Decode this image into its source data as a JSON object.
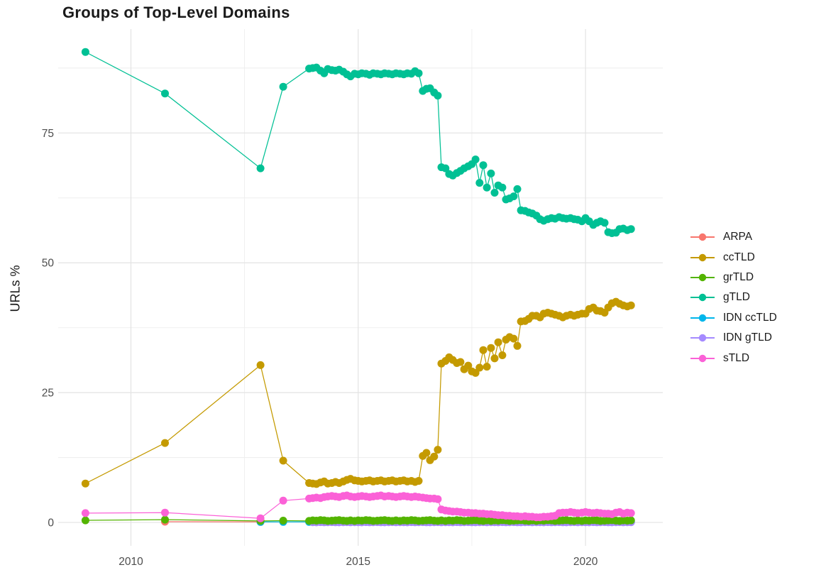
{
  "title": "Groups of Top-Level Domains",
  "legend": {
    "position": "right"
  },
  "chart_data": {
    "type": "line",
    "title": "Groups of Top-Level Domains",
    "xlabel": "",
    "ylabel": "URLs %",
    "xlim": [
      2008.4,
      2021.7
    ],
    "ylim": [
      -4.5,
      95
    ],
    "grid": true,
    "legend_position": "right",
    "x_major": [
      2010,
      2015,
      2020
    ],
    "x_major_labels": [
      "2010",
      "2015",
      "2020"
    ],
    "x_minor": [
      2012.5,
      2017.5
    ],
    "y_major": [
      0,
      25,
      50,
      75
    ],
    "y_major_labels": [
      "0",
      "25",
      "50",
      "75"
    ],
    "y_minor": [
      12.5,
      37.5,
      62.5,
      87.5
    ],
    "x": [
      2009.0,
      2010.75,
      2012.85,
      2013.35,
      2013.92,
      2014.0,
      2014.08,
      2014.17,
      2014.25,
      2014.33,
      2014.42,
      2014.5,
      2014.58,
      2014.67,
      2014.75,
      2014.83,
      2014.92,
      2015.0,
      2015.08,
      2015.17,
      2015.25,
      2015.33,
      2015.42,
      2015.5,
      2015.58,
      2015.67,
      2015.75,
      2015.83,
      2015.92,
      2016.0,
      2016.08,
      2016.17,
      2016.25,
      2016.33,
      2016.42,
      2016.5,
      2016.58,
      2016.67,
      2016.75,
      2016.83,
      2016.92,
      2017.0,
      2017.08,
      2017.17,
      2017.25,
      2017.33,
      2017.42,
      2017.5,
      2017.58,
      2017.67,
      2017.75,
      2017.83,
      2017.92,
      2018.0,
      2018.08,
      2018.17,
      2018.25,
      2018.33,
      2018.42,
      2018.5,
      2018.58,
      2018.67,
      2018.75,
      2018.83,
      2018.92,
      2019.0,
      2019.08,
      2019.17,
      2019.25,
      2019.33,
      2019.42,
      2019.5,
      2019.58,
      2019.67,
      2019.75,
      2019.83,
      2019.92,
      2020.0,
      2020.08,
      2020.17,
      2020.25,
      2020.33,
      2020.42,
      2020.5,
      2020.58,
      2020.67,
      2020.75,
      2020.83,
      2020.92,
      2021.0
    ],
    "z_order": [
      0,
      4,
      5,
      2,
      1,
      3,
      6
    ],
    "series": [
      {
        "name": "ARPA",
        "color": "#F8766D",
        "x": [
          2010.75,
          2012.85
        ],
        "y": [
          0.15,
          0.1
        ]
      },
      {
        "name": "ccTLD",
        "color": "#C49A00",
        "start_index": 0,
        "y": [
          7.5,
          15.3,
          30.3,
          11.9,
          7.6,
          7.5,
          7.4,
          7.7,
          7.9,
          7.5,
          7.6,
          7.8,
          7.6,
          7.9,
          8.2,
          8.4,
          8.1,
          8.0,
          7.9,
          8.0,
          8.1,
          7.9,
          8.0,
          8.1,
          7.9,
          8.0,
          8.1,
          7.9,
          8.0,
          8.1,
          7.9,
          8.0,
          7.8,
          8.0,
          12.8,
          13.4,
          12.0,
          12.7,
          14.0,
          30.6,
          31.1,
          31.8,
          31.3,
          30.7,
          30.9,
          29.5,
          30.2,
          29.1,
          28.8,
          29.8,
          33.2,
          30.0,
          33.6,
          31.6,
          34.7,
          32.2,
          35.2,
          35.7,
          35.4,
          34.0,
          38.7,
          38.8,
          39.2,
          39.8,
          39.8,
          39.5,
          40.2,
          40.4,
          40.2,
          40.0,
          39.8,
          39.5,
          39.8,
          40.0,
          39.8,
          40.0,
          40.2,
          40.2,
          41.1,
          41.4,
          40.8,
          40.7,
          40.4,
          41.4,
          42.2,
          42.5,
          42.1,
          41.8,
          41.6,
          41.8
        ]
      },
      {
        "name": "grTLD",
        "color": "#53B400",
        "start_index": 0,
        "y": [
          0.4,
          0.55,
          0.3,
          0.35,
          0.3,
          0.4,
          0.35,
          0.45,
          0.4,
          0.3,
          0.35,
          0.4,
          0.45,
          0.35,
          0.3,
          0.4,
          0.3,
          0.4,
          0.35,
          0.45,
          0.4,
          0.3,
          0.35,
          0.4,
          0.45,
          0.35,
          0.3,
          0.4,
          0.3,
          0.4,
          0.35,
          0.45,
          0.4,
          0.3,
          0.35,
          0.4,
          0.45,
          0.35,
          0.3,
          0.4,
          0.3,
          0.4,
          0.35,
          0.45,
          0.4,
          0.3,
          0.35,
          0.4,
          0.45,
          0.35,
          0.3,
          0.4,
          0.3,
          0.4,
          0.35,
          0.45,
          0.4,
          0.3,
          0.35,
          0.4,
          0.45,
          0.35,
          0.3,
          0.4,
          0.3,
          0.4,
          0.35,
          0.45,
          0.4,
          0.3,
          0.35,
          0.4,
          0.45,
          0.35,
          0.3,
          0.4,
          0.3,
          0.4,
          0.35,
          0.45,
          0.4,
          0.3,
          0.35,
          0.4,
          0.45,
          0.35,
          0.3,
          0.4,
          0.35,
          0.4
        ]
      },
      {
        "name": "gTLD",
        "color": "#00C094",
        "start_index": 0,
        "y": [
          90.6,
          82.6,
          68.2,
          83.9,
          87.4,
          87.5,
          87.6,
          87.0,
          86.5,
          87.3,
          87.1,
          87.0,
          87.2,
          86.8,
          86.3,
          85.9,
          86.4,
          86.3,
          86.5,
          86.4,
          86.2,
          86.5,
          86.4,
          86.3,
          86.5,
          86.4,
          86.3,
          86.5,
          86.4,
          86.3,
          86.5,
          86.4,
          86.9,
          86.5,
          83.1,
          83.5,
          83.6,
          82.8,
          82.2,
          68.4,
          68.2,
          67.1,
          66.8,
          67.3,
          67.7,
          68.2,
          68.6,
          69.0,
          69.9,
          65.4,
          68.8,
          64.5,
          67.2,
          63.5,
          64.9,
          64.5,
          62.2,
          62.4,
          62.8,
          64.2,
          60.1,
          60.0,
          59.7,
          59.5,
          59.1,
          58.4,
          58.1,
          58.4,
          58.6,
          58.5,
          58.8,
          58.6,
          58.5,
          58.6,
          58.4,
          58.3,
          58.0,
          58.6,
          58.0,
          57.3,
          57.7,
          58.0,
          57.7,
          55.9,
          55.7,
          55.8,
          56.5,
          56.6,
          56.3,
          56.5
        ]
      },
      {
        "name": "IDN ccTLD",
        "color": "#00B6EB",
        "start_index": 2,
        "y": [
          0.1,
          0.1,
          0.1,
          0.12,
          0.08,
          0.1,
          0.14,
          0.1,
          0.08,
          0.12,
          0.1,
          0.09,
          0.11,
          0.1,
          0.1,
          0.12,
          0.08,
          0.1,
          0.14,
          0.1,
          0.08,
          0.12,
          0.1,
          0.09,
          0.11,
          0.1,
          0.1,
          0.12,
          0.08,
          0.1,
          0.14,
          0.1,
          0.08,
          0.12,
          0.1,
          0.09,
          0.11,
          0.1,
          0.1,
          0.12,
          0.08,
          0.1,
          0.14,
          0.1,
          0.08,
          0.12,
          0.1,
          0.09,
          0.11,
          0.1,
          0.1,
          0.12,
          0.08,
          0.1,
          0.14,
          0.1,
          0.08,
          0.12,
          0.1,
          0.09,
          0.11,
          0.1,
          0.1,
          0.12,
          0.08,
          0.1,
          0.14,
          0.1,
          0.08,
          0.12,
          0.1,
          0.09,
          0.11,
          0.1,
          0.1,
          0.12,
          0.08,
          0.1,
          0.14,
          0.1,
          0.08,
          0.12,
          0.1,
          0.09,
          0.11,
          0.1,
          0.1,
          0.12
        ]
      },
      {
        "name": "IDN gTLD",
        "color": "#A58AFF",
        "start_index": 5,
        "y": [
          0.05,
          0.03,
          0.06,
          0.04,
          0.05,
          0.07,
          0.04,
          0.03,
          0.05,
          0.06,
          0.04,
          0.05,
          0.05,
          0.03,
          0.06,
          0.04,
          0.05,
          0.07,
          0.04,
          0.03,
          0.05,
          0.06,
          0.04,
          0.05,
          0.05,
          0.03,
          0.06,
          0.04,
          0.05,
          0.07,
          0.04,
          0.03,
          0.05,
          0.06,
          0.04,
          0.05,
          0.05,
          0.03,
          0.06,
          0.04,
          0.05,
          0.07,
          0.04,
          0.03,
          0.05,
          0.06,
          0.04,
          0.05,
          0.05,
          0.03,
          0.06,
          0.04,
          0.05,
          0.07,
          0.04,
          0.03,
          0.05,
          0.06,
          0.04,
          0.05,
          0.05,
          0.03,
          0.06,
          0.04,
          0.05,
          0.07,
          0.04,
          0.03,
          0.05,
          0.06,
          0.04,
          0.05,
          0.05,
          0.03,
          0.06,
          0.04,
          0.05,
          0.07,
          0.04,
          0.03,
          0.05,
          0.06,
          0.04,
          0.05,
          0.05
        ]
      },
      {
        "name": "sTLD",
        "color": "#FB61D7",
        "start_index": 0,
        "y": [
          1.8,
          1.9,
          0.8,
          4.2,
          4.6,
          4.7,
          4.8,
          4.7,
          4.9,
          5.0,
          5.1,
          5.0,
          4.9,
          5.1,
          5.2,
          5.0,
          4.9,
          5.0,
          5.1,
          5.0,
          4.9,
          5.0,
          5.1,
          5.2,
          5.0,
          5.1,
          5.0,
          4.9,
          5.0,
          5.1,
          5.0,
          4.9,
          5.0,
          4.9,
          4.8,
          4.7,
          4.6,
          4.6,
          4.5,
          2.5,
          2.3,
          2.2,
          2.1,
          2.1,
          2.0,
          1.9,
          1.9,
          1.8,
          1.8,
          1.7,
          1.7,
          1.6,
          1.6,
          1.5,
          1.4,
          1.4,
          1.3,
          1.3,
          1.2,
          1.2,
          1.1,
          1.2,
          1.1,
          1.1,
          1.0,
          1.0,
          1.1,
          1.1,
          1.2,
          1.3,
          1.8,
          1.9,
          1.9,
          2.0,
          1.9,
          1.8,
          1.9,
          2.0,
          1.9,
          1.8,
          1.9,
          1.8,
          1.7,
          1.7,
          1.6,
          1.9,
          2.0,
          1.7,
          1.9,
          1.8
        ]
      }
    ]
  },
  "style": {
    "background": "#ffffff",
    "grid_major_color": "#e3e3e3",
    "grid_minor_color": "#ededed",
    "tick_label_color": "#4d4d4d",
    "text_color": "#1a1a1a"
  }
}
